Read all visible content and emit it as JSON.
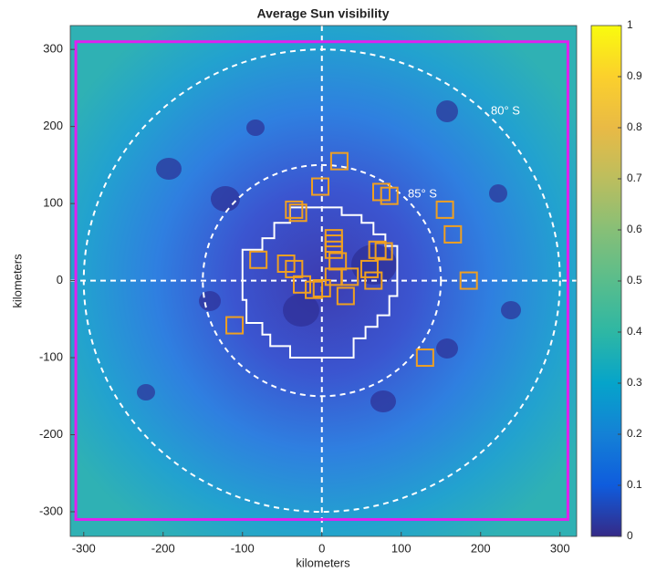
{
  "chart_data": {
    "type": "image",
    "title": "Average Sun visibility",
    "xlabel": "kilometers",
    "ylabel": "kilometers",
    "xlim": [
      -317,
      321
    ],
    "ylim": [
      -332,
      331
    ],
    "xticks": [
      -300,
      -200,
      -100,
      0,
      100,
      200,
      300
    ],
    "yticks": [
      -300,
      -200,
      -100,
      0,
      100,
      200,
      300
    ],
    "annotations": [
      "80° S",
      "85° S"
    ],
    "colorbar": {
      "lim": [
        0,
        1
      ],
      "ticks": [
        0,
        0.1,
        0.2,
        0.3,
        0.4,
        0.5,
        0.6,
        0.7,
        0.8,
        0.9,
        1
      ]
    }
  }
}
